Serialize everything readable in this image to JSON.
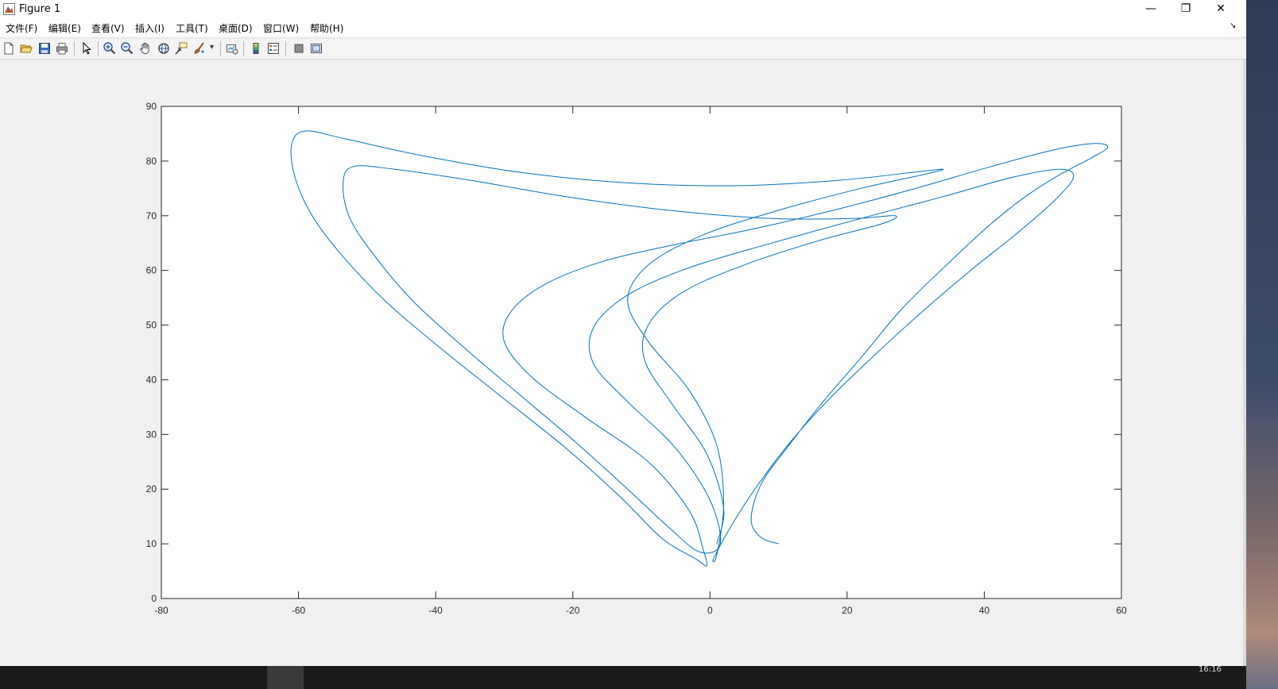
{
  "window": {
    "title": "Figure 1",
    "minimize_glyph": "—",
    "restore_glyph": "❐",
    "close_glyph": "✕"
  },
  "menubar": {
    "items": [
      "文件(F)",
      "编辑(E)",
      "查看(V)",
      "插入(I)",
      "工具(T)",
      "桌面(D)",
      "窗口(W)",
      "帮助(H)"
    ],
    "overflow_glyph": "↘"
  },
  "toolbar": {
    "icons": [
      "new-figure-icon",
      "open-file-icon",
      "save-icon",
      "print-icon",
      "edit-plot-arrow-icon",
      "zoom-in-icon",
      "zoom-out-icon",
      "pan-hand-icon",
      "rotate-3d-icon",
      "data-cursor-icon",
      "brush-icon",
      "link-plot-icon",
      "colorbar-icon",
      "legend-icon",
      "hide-plot-tools-icon",
      "show-plot-tools-icon"
    ],
    "brush_dropdown_glyph": "▾"
  },
  "taskbar": {
    "clock_partial": "16:16"
  },
  "colors": {
    "line": "#0072bd",
    "axes_bg": "#ffffff",
    "figure_bg": "#f0f0f0"
  },
  "chart_data": {
    "type": "line",
    "title": "",
    "xlabel": "",
    "ylabel": "",
    "xlim": [
      -80,
      60
    ],
    "ylim": [
      0,
      90
    ],
    "xticks": [
      -80,
      -60,
      -40,
      -20,
      0,
      20,
      40,
      60
    ],
    "yticks": [
      0,
      10,
      20,
      30,
      40,
      50,
      60,
      70,
      80,
      90
    ],
    "grid": false,
    "box": true,
    "series": [
      {
        "trajectory": "chaotic attractor trace (continuous path, start point approx. (10, 10))",
        "points": [
          [
            10.0,
            10.0
          ],
          [
            7.4,
            11.2
          ],
          [
            6.0,
            14.5
          ],
          [
            7.5,
            21.0
          ],
          [
            11.5,
            28.0
          ],
          [
            16.5,
            36.0
          ],
          [
            22.0,
            44.0
          ],
          [
            28.0,
            53.0
          ],
          [
            34.5,
            61.0
          ],
          [
            40.5,
            68.0
          ],
          [
            46.0,
            73.5
          ],
          [
            51.0,
            77.5
          ],
          [
            55.5,
            80.5
          ],
          [
            58.0,
            82.5
          ],
          [
            56.0,
            83.2
          ],
          [
            50.0,
            82.0
          ],
          [
            41.0,
            79.0
          ],
          [
            30.0,
            75.0
          ],
          [
            18.0,
            71.0
          ],
          [
            6.0,
            67.5
          ],
          [
            -6.0,
            64.5
          ],
          [
            -16.0,
            61.5
          ],
          [
            -24.0,
            57.5
          ],
          [
            -29.0,
            52.5
          ],
          [
            -30.0,
            47.0
          ],
          [
            -26.0,
            40.5
          ],
          [
            -18.0,
            33.0
          ],
          [
            -9.0,
            25.0
          ],
          [
            -3.0,
            16.0
          ],
          [
            -1.0,
            9.0
          ],
          [
            -0.5,
            6.0
          ],
          [
            -2.0,
            7.2
          ],
          [
            -7.0,
            11.0
          ],
          [
            -13.0,
            18.5
          ],
          [
            -21.0,
            27.5
          ],
          [
            -30.0,
            36.5
          ],
          [
            -39.0,
            45.5
          ],
          [
            -47.0,
            54.0
          ],
          [
            -53.5,
            62.5
          ],
          [
            -58.0,
            70.0
          ],
          [
            -60.5,
            77.0
          ],
          [
            -61.0,
            83.0
          ],
          [
            -59.0,
            85.5
          ],
          [
            -53.0,
            84.0
          ],
          [
            -42.0,
            81.0
          ],
          [
            -28.0,
            78.0
          ],
          [
            -12.0,
            76.0
          ],
          [
            4.0,
            75.5
          ],
          [
            19.0,
            76.5
          ],
          [
            30.0,
            78.0
          ],
          [
            34.0,
            78.5
          ],
          [
            31.0,
            77.5
          ],
          [
            22.0,
            75.0
          ],
          [
            10.0,
            71.0
          ],
          [
            -1.0,
            66.5
          ],
          [
            -9.0,
            61.0
          ],
          [
            -12.0,
            54.5
          ],
          [
            -9.0,
            47.0
          ],
          [
            -3.0,
            38.0
          ],
          [
            1.0,
            28.0
          ],
          [
            2.0,
            17.0
          ],
          [
            1.0,
            8.0
          ],
          [
            0.5,
            7.2
          ],
          [
            2.5,
            12.0
          ],
          [
            6.0,
            19.0
          ],
          [
            11.0,
            27.5
          ],
          [
            17.0,
            36.0
          ],
          [
            24.0,
            44.5
          ],
          [
            31.0,
            52.5
          ],
          [
            38.0,
            60.0
          ],
          [
            44.5,
            66.5
          ],
          [
            50.0,
            72.5
          ],
          [
            53.0,
            77.0
          ],
          [
            51.0,
            78.5
          ],
          [
            44.0,
            77.0
          ],
          [
            34.0,
            73.5
          ],
          [
            22.0,
            69.5
          ],
          [
            9.0,
            65.0
          ],
          [
            -3.0,
            60.5
          ],
          [
            -12.0,
            55.5
          ],
          [
            -17.0,
            49.5
          ],
          [
            -17.0,
            43.0
          ],
          [
            -12.0,
            36.0
          ],
          [
            -5.0,
            27.5
          ],
          [
            0.0,
            18.0
          ],
          [
            1.5,
            10.0
          ],
          [
            -1.5,
            8.5
          ],
          [
            -6.0,
            13.0
          ],
          [
            -12.0,
            20.0
          ],
          [
            -19.5,
            28.5
          ],
          [
            -27.5,
            37.0
          ],
          [
            -35.5,
            45.5
          ],
          [
            -43.0,
            54.0
          ],
          [
            -48.5,
            62.0
          ],
          [
            -52.5,
            69.5
          ],
          [
            -53.5,
            76.0
          ],
          [
            -52.0,
            79.0
          ],
          [
            -46.0,
            78.5
          ],
          [
            -35.0,
            76.5
          ],
          [
            -21.0,
            73.5
          ],
          [
            -6.0,
            71.0
          ],
          [
            9.0,
            69.5
          ],
          [
            21.0,
            69.5
          ],
          [
            27.0,
            70.0
          ],
          [
            25.0,
            68.5
          ],
          [
            16.0,
            65.5
          ],
          [
            5.0,
            61.0
          ],
          [
            -4.0,
            56.0
          ],
          [
            -9.0,
            50.0
          ],
          [
            -9.5,
            43.5
          ],
          [
            -5.5,
            35.5
          ],
          [
            -0.5,
            26.5
          ],
          [
            2.0,
            16.5
          ],
          [
            1.0,
            10.0
          ]
        ]
      }
    ]
  }
}
